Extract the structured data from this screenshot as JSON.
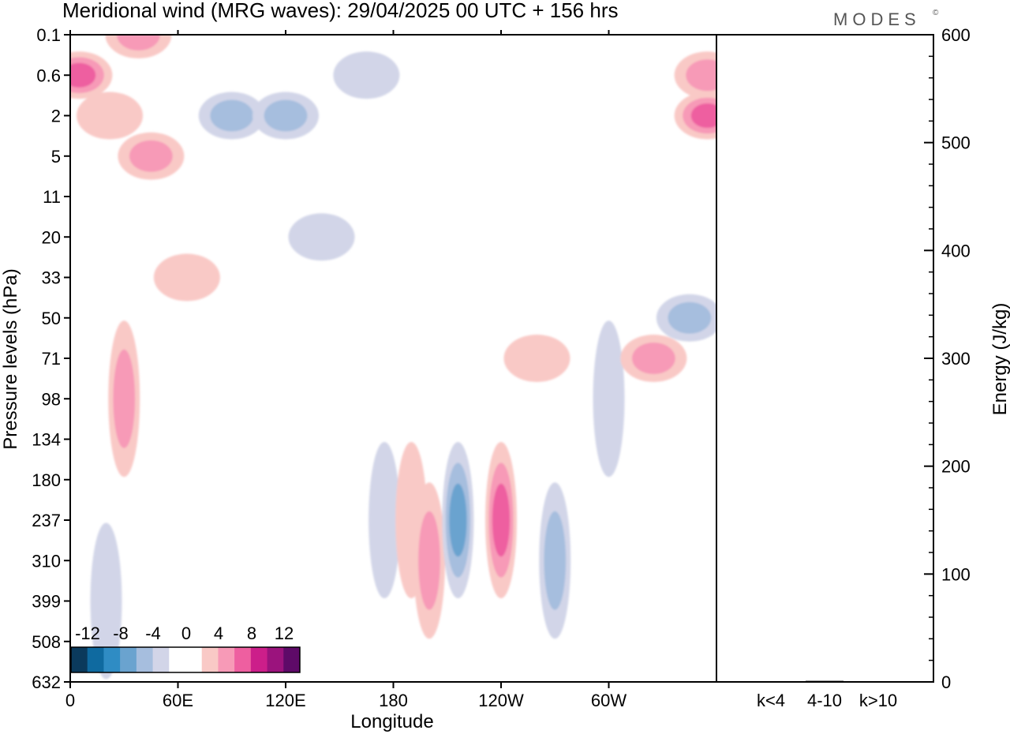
{
  "header": {
    "title": "Meridional wind (MRG waves):  29/04/2025  00 UTC  + 156 hrs",
    "brand": "MODES",
    "brand_mark": "©"
  },
  "chart_data": [
    {
      "type": "heatmap",
      "title": "Meridional wind (MRG waves):  29/04/2025  00 UTC  + 156 hrs",
      "xlabel": "Longitude",
      "ylabel": "Pressure levels (hPa)",
      "x_ticks": [
        "0",
        "60E",
        "120E",
        "180",
        "120W",
        "60W"
      ],
      "x_tick_degrees": [
        0,
        60,
        120,
        180,
        240,
        300
      ],
      "xlim_degrees": [
        0,
        360
      ],
      "y_ticks": [
        "0.1",
        "0.6",
        "2",
        "5",
        "11",
        "20",
        "33",
        "50",
        "71",
        "98",
        "134",
        "180",
        "237",
        "310",
        "399",
        "508",
        "632"
      ],
      "colorbar": {
        "labels": [
          "-12",
          "-8",
          "-4",
          "0",
          "4",
          "8",
          "12"
        ],
        "levels": [
          -16,
          -14,
          -12,
          -10,
          -8,
          -6,
          -4,
          -2,
          2,
          4,
          6,
          8,
          10,
          12,
          14
        ],
        "colors": [
          "#0b3a5c",
          "#0f6aa0",
          "#2f8cc4",
          "#6aa3cf",
          "#a6bede",
          "#d2d5e8",
          "#ffffff",
          "#ffffff",
          "#f9c9c6",
          "#f79ab7",
          "#ee5fa0",
          "#cc1e8a",
          "#9b137d",
          "#5e0a68"
        ]
      },
      "blobs": [
        {
          "lon": 5,
          "lev": "0.6",
          "value": 8
        },
        {
          "lon": 22,
          "lev": "2",
          "value": 4
        },
        {
          "lon": 38,
          "lev": "0.1",
          "value": 6
        },
        {
          "lon": 45,
          "lev": "5",
          "value": 6
        },
        {
          "lon": 30,
          "lev": "98",
          "value": 7
        },
        {
          "lon": 20,
          "lev": "399",
          "value": -4
        },
        {
          "lon": 65,
          "lev": "33",
          "value": 3
        },
        {
          "lon": 90,
          "lev": "2",
          "value": -5
        },
        {
          "lon": 120,
          "lev": "2",
          "value": -6
        },
        {
          "lon": 165,
          "lev": "0.6",
          "value": -3
        },
        {
          "lon": 140,
          "lev": "20",
          "value": -3
        },
        {
          "lon": 175,
          "lev": "237",
          "value": -4
        },
        {
          "lon": 190,
          "lev": "237",
          "value": 4
        },
        {
          "lon": 200,
          "lev": "310",
          "value": 5
        },
        {
          "lon": 216,
          "lev": "237",
          "value": -8
        },
        {
          "lon": 240,
          "lev": "237",
          "value": 9
        },
        {
          "lon": 270,
          "lev": "310",
          "value": -7
        },
        {
          "lon": 260,
          "lev": "71",
          "value": 4
        },
        {
          "lon": 300,
          "lev": "98",
          "value": -4
        },
        {
          "lon": 325,
          "lev": "71",
          "value": 6
        },
        {
          "lon": 345,
          "lev": "50",
          "value": -5
        },
        {
          "lon": 355,
          "lev": "0.6",
          "value": 6
        },
        {
          "lon": 355,
          "lev": "2",
          "value": 8
        }
      ]
    },
    {
      "type": "bar",
      "categories": [
        "k<4",
        "4-10",
        "k>10"
      ],
      "values": [
        0,
        1,
        0
      ],
      "ylabel": "Energy (J/kg)",
      "ylim": [
        0,
        600
      ],
      "y_ticks": [
        0,
        100,
        200,
        300,
        400,
        500,
        600
      ]
    }
  ]
}
